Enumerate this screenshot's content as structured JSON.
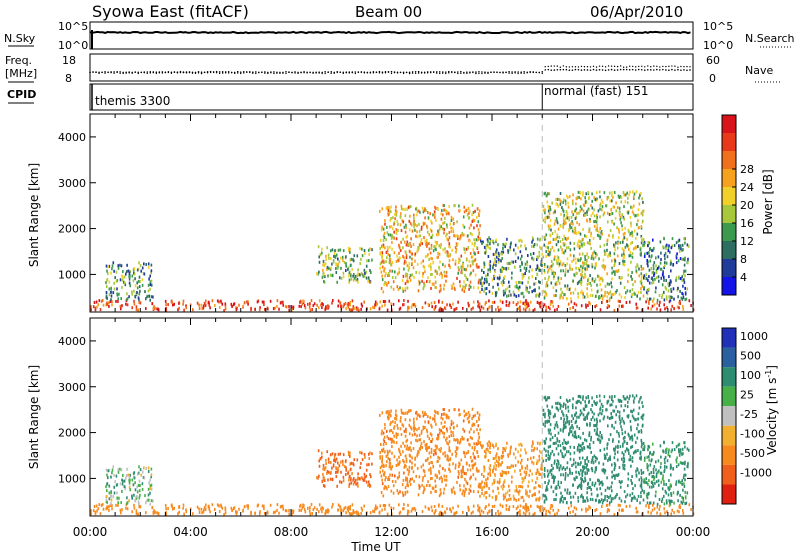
{
  "header": {
    "station": "Syowa East (fitACF)",
    "beam": "Beam 00",
    "date": "06/Apr/2010"
  },
  "top_panels": {
    "nsky": {
      "label": "N.Sky",
      "tick_hi": "10^5",
      "tick_lo": "10^0"
    },
    "nsearch": {
      "label": "N.Search",
      "tick_hi": "10^5",
      "tick_lo": "10^0"
    },
    "freq": {
      "label_l1": "Freq.",
      "label_l2": "[MHz]",
      "tick_hi": "18",
      "tick_lo": "8"
    },
    "nave": {
      "label": "Nave",
      "tick_hi": "60",
      "tick_lo": "0"
    },
    "cpid": {
      "label": "CPID",
      "mode_1": "themis 3300",
      "mode_2": "normal (fast) 151",
      "switch_hour": 18.0
    }
  },
  "axes": {
    "xlabel": "Time UT",
    "ylabel": "Slant Range [km]",
    "xticks": [
      "00:00",
      "04:00",
      "08:00",
      "12:00",
      "16:00",
      "20:00",
      "00:00"
    ],
    "yticks": [
      "1000",
      "2000",
      "3000",
      "4000"
    ]
  },
  "power_scale": {
    "label": "Power [dB]",
    "ticks": [
      "4",
      "8",
      "12",
      "16",
      "20",
      "24",
      "28"
    ],
    "colors": [
      "#1414e8",
      "#1f3c9a",
      "#2e6e60",
      "#3c9a4e",
      "#a8c83c",
      "#f2d02a",
      "#f7a21e",
      "#f0701c",
      "#e83a1a",
      "#d8141a"
    ]
  },
  "velocity_scale": {
    "label": "Velocity [m s",
    "label_sup": "-1",
    "label_end": "]",
    "ticks": [
      "1000",
      "500",
      "100",
      "25",
      "-25",
      "-100",
      "-500",
      "-1000"
    ],
    "colors": [
      "#2030b8",
      "#2a60a0",
      "#2e8c70",
      "#48b048",
      "#c0c0c0",
      "#f2b030",
      "#f78a1e",
      "#f0601c",
      "#e02010"
    ]
  },
  "chart_data": {
    "type": "heatmap",
    "title": "Syowa East (fitACF)",
    "subtitle": "Beam 00 06/Apr/2010",
    "xlabel": "Time UT",
    "ylabel": "Slant Range [km]",
    "xlim_hours": [
      0,
      24
    ],
    "ylim_km": [
      180,
      4500
    ],
    "nsky_level_log": 3.3,
    "freq_mhz_before_18h": 11.3,
    "freq_mhz_after_18h": 12.1,
    "nave_before_18h": 18,
    "nave_after_18h": 32,
    "scatter_regions": [
      {
        "name": "ground-band",
        "t0": 0.0,
        "t1": 24.0,
        "r0": 200,
        "r1": 420,
        "power": 26,
        "velocity": -200
      },
      {
        "name": "early-patch",
        "t0": 0.6,
        "t1": 2.5,
        "r0": 420,
        "r1": 1250,
        "power": 10,
        "velocity": 60
      },
      {
        "name": "morning-echo",
        "t0": 9.0,
        "t1": 11.2,
        "r0": 800,
        "r1": 1600,
        "power": 12,
        "velocity": -600
      },
      {
        "name": "noon-echo",
        "t0": 11.5,
        "t1": 15.5,
        "r0": 600,
        "r1": 2500,
        "power": 18,
        "velocity": -350
      },
      {
        "name": "afternoon-echo",
        "t0": 15.5,
        "t1": 18.0,
        "r0": 500,
        "r1": 1800,
        "power": 10,
        "velocity": -150
      },
      {
        "name": "evening-echo",
        "t0": 18.0,
        "t1": 22.0,
        "r0": 450,
        "r1": 2800,
        "power": 14,
        "velocity": 200
      },
      {
        "name": "late-echo",
        "t0": 22.0,
        "t1": 23.8,
        "r0": 420,
        "r1": 1800,
        "power": 8,
        "velocity": 150
      }
    ]
  }
}
